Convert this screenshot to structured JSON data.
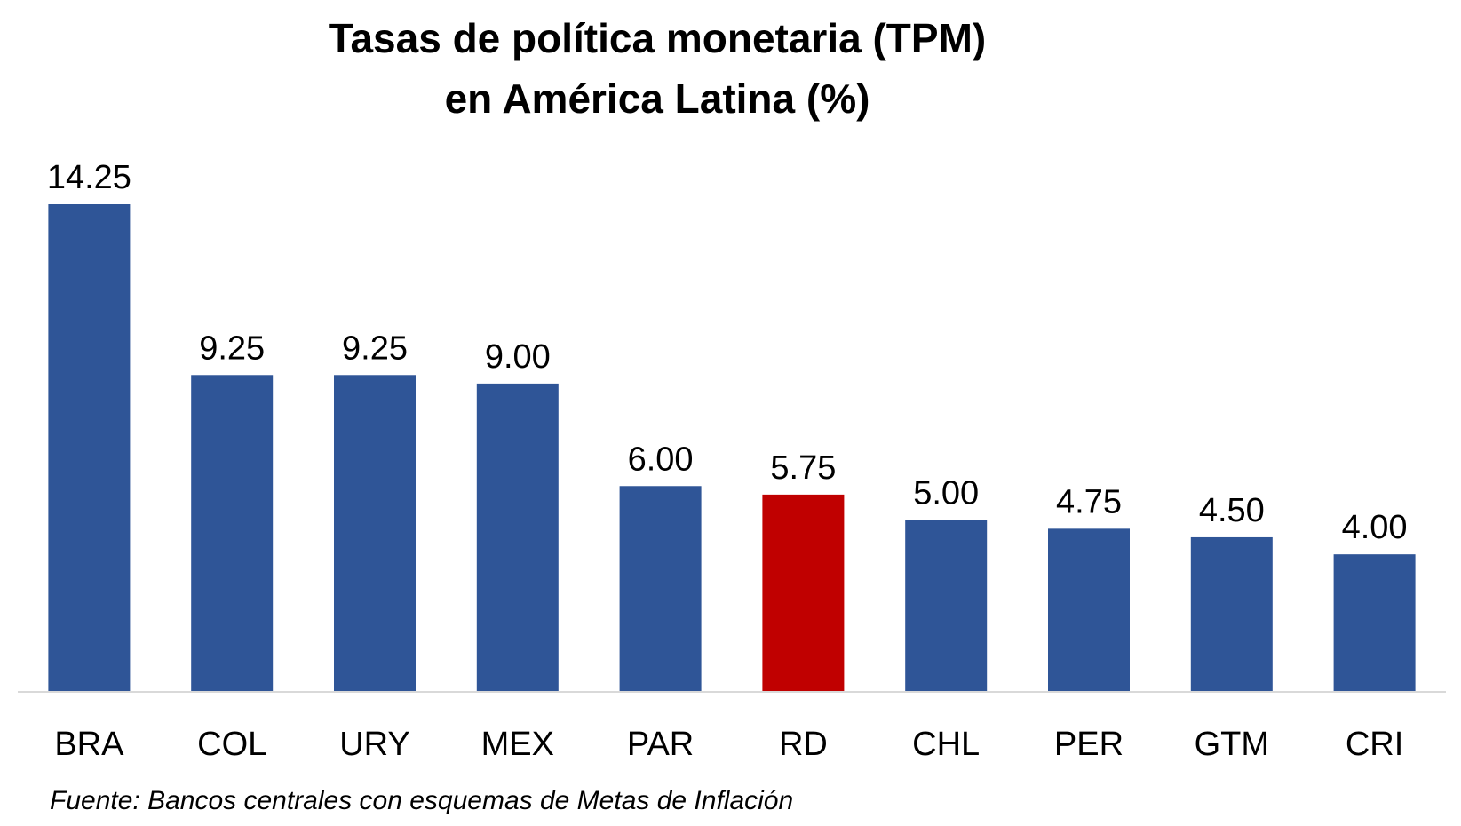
{
  "chart_data": {
    "type": "bar",
    "title": "Tasas de política monetaria (TPM)",
    "subtitle": "en América Latina (%)",
    "categories": [
      "BRA",
      "COL",
      "URY",
      "MEX",
      "PAR",
      "RD",
      "CHL",
      "PER",
      "GTM",
      "CRI"
    ],
    "values": [
      14.25,
      9.25,
      9.25,
      9.0,
      6.0,
      5.75,
      5.0,
      4.75,
      4.5,
      4.0
    ],
    "value_labels": [
      "14.25",
      "9.25",
      "9.25",
      "9.00",
      "6.00",
      "5.75",
      "5.00",
      "4.75",
      "4.50",
      "4.00"
    ],
    "ylim": [
      0,
      14.25
    ],
    "grid": false,
    "legend": "none",
    "colors": {
      "default_bar": "#2F5597",
      "highlight_bar": "#C00000",
      "axis_line": "#D9D9D9"
    },
    "highlight_category": "RD"
  },
  "source": "Fuente: Bancos centrales con esquemas de Metas de Inflación"
}
